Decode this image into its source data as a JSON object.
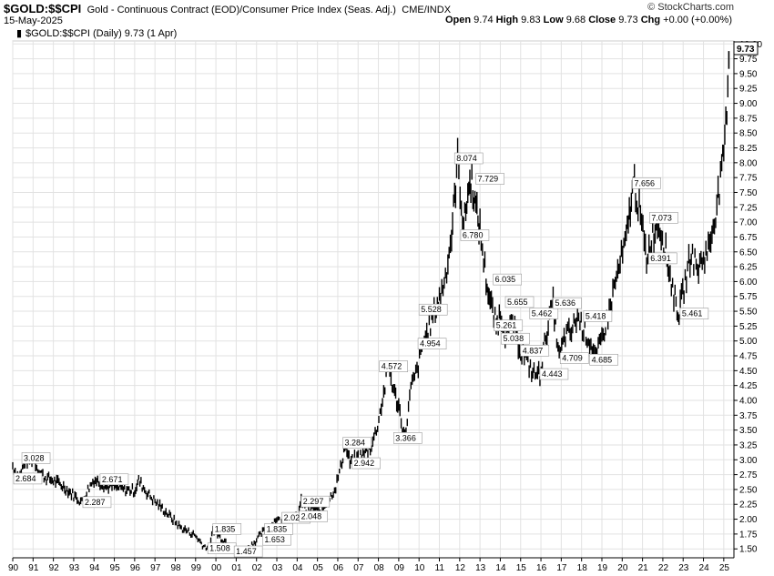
{
  "header": {
    "symbol": "$GOLD:$$CPI",
    "description": "Gold - Continuous Contract (EOD)/Consumer Price Index (Seas. Adj.)",
    "exchange": "CME/INDX",
    "source": "© StockCharts.com",
    "date": "15-May-2025",
    "open_label": "Open",
    "open": "9.74",
    "high_label": "High",
    "high": "9.83",
    "low_label": "Low",
    "low": "9.68",
    "close_label": "Close",
    "close": "9.73",
    "chg_label": "Chg",
    "chg": "+0.00 (+0.00%)",
    "legend": "$GOLD:$$CPI (Daily) 9.73 (1 Apr)",
    "last_price_tag": "9.73"
  },
  "colors": {
    "bars": "#000000",
    "grid": "#e2e2e2",
    "tag_bg": "#ffffff",
    "label_border": "#999999"
  },
  "chart_data": {
    "type": "line",
    "title": "$GOLD:$$CPI",
    "xlabel": "",
    "ylabel": "",
    "xlim": [
      1990,
      2025.5
    ],
    "ylim": [
      1.35,
      10.05
    ],
    "y_ticks": [
      1.5,
      1.75,
      2.0,
      2.25,
      2.5,
      2.75,
      3.0,
      3.25,
      3.5,
      3.75,
      4.0,
      4.25,
      4.5,
      4.75,
      5.0,
      5.25,
      5.5,
      5.75,
      6.0,
      6.25,
      6.5,
      6.75,
      7.0,
      7.25,
      7.5,
      7.75,
      8.0,
      8.25,
      8.5,
      8.75,
      9.0,
      9.25,
      9.5,
      9.75,
      10.0
    ],
    "y_tick_labels": [
      "1.50",
      "1.75",
      "2.00",
      "2.25",
      "2.50",
      "2.75",
      "3.00",
      "3.25",
      "3.50",
      "3.75",
      "4.00",
      "4.25",
      "4.50",
      "4.75",
      "5.00",
      "5.25",
      "5.50",
      "5.75",
      "6.00",
      "6.25",
      "6.50",
      "6.75",
      "7.00",
      "7.25",
      "7.50",
      "7.75",
      "8.00",
      "8.25",
      "8.50",
      "8.75",
      "9.00",
      "9.25",
      "9.50",
      "9.75",
      "10.00"
    ],
    "x_tick_years": [
      1990,
      1991,
      1992,
      1993,
      1994,
      1995,
      1996,
      1997,
      1998,
      1999,
      2000,
      2001,
      2002,
      2003,
      2004,
      2005,
      2006,
      2007,
      2008,
      2009,
      2010,
      2011,
      2012,
      2013,
      2014,
      2015,
      2016,
      2017,
      2018,
      2019,
      2020,
      2021,
      2022,
      2023,
      2024,
      2025
    ],
    "x_tick_labels": [
      "90",
      "91",
      "92",
      "93",
      "94",
      "95",
      "96",
      "97",
      "98",
      "99",
      "00",
      "01",
      "02",
      "03",
      "04",
      "05",
      "06",
      "07",
      "08",
      "09",
      "10",
      "11",
      "12",
      "13",
      "14",
      "15",
      "16",
      "17",
      "18",
      "19",
      "20",
      "21",
      "22",
      "23",
      "24",
      "25"
    ],
    "grid": true,
    "series": [
      {
        "x": [
          1990.0,
          1990.3,
          1990.6,
          1991.0,
          1991.3,
          1991.6,
          1992.0,
          1992.5,
          1993.0,
          1993.4,
          1993.7,
          1994.0,
          1994.3,
          1994.6,
          1995.0,
          1995.5,
          1996.0,
          1996.2,
          1996.6,
          1997.0,
          1997.3,
          1997.6,
          1998.0,
          1998.3,
          1998.6,
          1999.0,
          1999.4,
          1999.7,
          1999.85,
          2000.2,
          2000.6,
          2001.0,
          2001.3,
          2001.6,
          2002.0,
          2002.3,
          2002.6,
          2003.0,
          2003.3,
          2003.6,
          2004.0,
          2004.2,
          2004.5,
          2004.8,
          2005.0,
          2005.3,
          2005.6,
          2005.9,
          2006.2,
          2006.35,
          2006.6,
          2007.0,
          2007.3,
          2007.6,
          2007.9,
          2008.2,
          2008.5,
          2008.8,
          2009.0,
          2009.3,
          2009.6,
          2009.9,
          2010.2,
          2010.5,
          2010.8,
          2011.0,
          2011.3,
          2011.6,
          2011.75,
          2011.9,
          2012.2,
          2012.4,
          2012.6,
          2012.8,
          2013.0,
          2013.3,
          2013.5,
          2013.8,
          2014.0,
          2014.3,
          2014.6,
          2015.0,
          2015.3,
          2015.6,
          2015.95,
          2016.3,
          2016.6,
          2016.9,
          2017.2,
          2017.5,
          2017.8,
          2018.1,
          2018.4,
          2018.7,
          2019.0,
          2019.3,
          2019.6,
          2019.9,
          2020.2,
          2020.45,
          2020.6,
          2020.9,
          2021.2,
          2021.5,
          2021.8,
          2022.1,
          2022.3,
          2022.6,
          2022.8,
          2023.1,
          2023.4,
          2023.7,
          2024.0,
          2024.3,
          2024.6,
          2024.9,
          2025.1,
          2025.25
        ],
        "y": [
          2.9,
          2.7,
          2.95,
          3.03,
          2.8,
          2.7,
          2.65,
          2.55,
          2.4,
          2.29,
          2.5,
          2.67,
          2.62,
          2.55,
          2.55,
          2.5,
          2.48,
          2.65,
          2.45,
          2.3,
          2.2,
          2.1,
          1.95,
          1.85,
          1.8,
          1.72,
          1.55,
          1.51,
          1.83,
          1.7,
          1.6,
          1.5,
          1.46,
          1.52,
          1.65,
          1.78,
          1.84,
          2.02,
          1.9,
          1.95,
          2.05,
          2.3,
          2.1,
          2.2,
          2.15,
          2.2,
          2.35,
          2.55,
          2.95,
          3.28,
          2.94,
          3.05,
          3.1,
          3.2,
          3.5,
          4.0,
          4.57,
          4.1,
          3.9,
          3.37,
          4.2,
          4.5,
          4.95,
          5.2,
          5.53,
          5.7,
          6.1,
          6.78,
          7.4,
          8.07,
          6.9,
          7.5,
          7.73,
          7.2,
          6.9,
          6.04,
          5.66,
          5.26,
          5.46,
          5.04,
          5.3,
          4.84,
          4.7,
          4.45,
          4.44,
          5.2,
          5.64,
          4.71,
          5.1,
          5.15,
          5.42,
          5.2,
          5.0,
          4.69,
          5.05,
          5.4,
          5.9,
          6.3,
          6.7,
          7.4,
          7.66,
          7.07,
          6.39,
          6.8,
          7.0,
          6.6,
          6.2,
          5.7,
          5.46,
          6.0,
          6.5,
          6.2,
          6.4,
          6.6,
          7.2,
          7.8,
          8.6,
          9.73
        ]
      }
    ],
    "annotations": [
      {
        "x": 1990.45,
        "y": 3.028,
        "text": "3.028"
      },
      {
        "x": 1990.0,
        "y": 2.684,
        "text": "2.684"
      },
      {
        "x": 1994.3,
        "y": 2.671,
        "text": "2.671"
      },
      {
        "x": 1993.45,
        "y": 2.287,
        "text": "2.287"
      },
      {
        "x": 1999.85,
        "y": 1.835,
        "text": "1.835"
      },
      {
        "x": 1999.6,
        "y": 1.508,
        "text": "1.508"
      },
      {
        "x": 2000.9,
        "y": 1.457,
        "text": "1.457"
      },
      {
        "x": 2002.3,
        "y": 1.653,
        "text": "1.653"
      },
      {
        "x": 2002.4,
        "y": 1.835,
        "text": "1.835"
      },
      {
        "x": 2003.25,
        "y": 2.023,
        "text": "2.023"
      },
      {
        "x": 2004.2,
        "y": 2.297,
        "text": "2.297"
      },
      {
        "x": 2004.1,
        "y": 2.048,
        "text": "2.048"
      },
      {
        "x": 2006.25,
        "y": 3.284,
        "text": "3.284"
      },
      {
        "x": 2006.7,
        "y": 2.942,
        "text": "2.942"
      },
      {
        "x": 2008.05,
        "y": 4.572,
        "text": "4.572"
      },
      {
        "x": 2008.75,
        "y": 3.366,
        "text": "3.366"
      },
      {
        "x": 2010.0,
        "y": 5.528,
        "text": "5.528"
      },
      {
        "x": 2009.95,
        "y": 4.954,
        "text": "4.954"
      },
      {
        "x": 2011.75,
        "y": 8.074,
        "text": "8.074"
      },
      {
        "x": 2012.8,
        "y": 7.729,
        "text": "7.729"
      },
      {
        "x": 2012.05,
        "y": 6.78,
        "text": "6.780"
      },
      {
        "x": 2013.65,
        "y": 6.035,
        "text": "6.035"
      },
      {
        "x": 2014.25,
        "y": 5.655,
        "text": "5.655"
      },
      {
        "x": 2015.45,
        "y": 5.462,
        "text": "5.462"
      },
      {
        "x": 2013.7,
        "y": 5.261,
        "text": "5.261"
      },
      {
        "x": 2014.05,
        "y": 5.038,
        "text": "5.038"
      },
      {
        "x": 2015.0,
        "y": 4.837,
        "text": "4.837"
      },
      {
        "x": 2015.95,
        "y": 4.443,
        "text": "4.443"
      },
      {
        "x": 2016.6,
        "y": 5.636,
        "text": "5.636"
      },
      {
        "x": 2016.95,
        "y": 4.709,
        "text": "4.709"
      },
      {
        "x": 2018.1,
        "y": 5.418,
        "text": "5.418"
      },
      {
        "x": 2018.4,
        "y": 4.685,
        "text": "4.685"
      },
      {
        "x": 2020.5,
        "y": 7.656,
        "text": "7.656"
      },
      {
        "x": 2021.35,
        "y": 7.073,
        "text": "7.073"
      },
      {
        "x": 2021.3,
        "y": 6.391,
        "text": "6.391"
      },
      {
        "x": 2022.85,
        "y": 5.461,
        "text": "5.461"
      }
    ]
  }
}
